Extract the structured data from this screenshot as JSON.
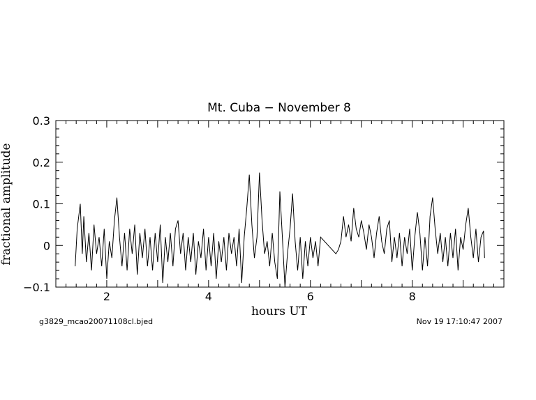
{
  "chart_data": {
    "type": "line",
    "title": "Mt. Cuba − November 8",
    "xlabel": "hours UT",
    "ylabel": "fractional amplitude",
    "xlim": [
      1.0,
      9.8
    ],
    "ylim": [
      -0.1,
      0.3
    ],
    "x_ticks": [
      2,
      4,
      6,
      8
    ],
    "x_tick_labels": [
      "2",
      "4",
      "6",
      "8"
    ],
    "y_ticks": [
      -0.1,
      0,
      0.1,
      0.2,
      0.3
    ],
    "y_tick_labels": [
      "−0.1",
      "0",
      "0.1",
      "0.2",
      "0.3"
    ],
    "grid": false,
    "series": [
      {
        "x": [
          1.38,
          1.42,
          1.48,
          1.52,
          1.55,
          1.6,
          1.65,
          1.7,
          1.75,
          1.8,
          1.85,
          1.9,
          1.95,
          2.0,
          2.05,
          2.1,
          2.15,
          2.2,
          2.25,
          2.3,
          2.35,
          2.4,
          2.45,
          2.5,
          2.55,
          2.6,
          2.65,
          2.7,
          2.75,
          2.8,
          2.85,
          2.9,
          2.95,
          3.0,
          3.05,
          3.1,
          3.15,
          3.2,
          3.25,
          3.3,
          3.35,
          3.4,
          3.45,
          3.5,
          3.55,
          3.6,
          3.65,
          3.7,
          3.75,
          3.8,
          3.85,
          3.9,
          3.95,
          4.0,
          4.05,
          4.1,
          4.15,
          4.2,
          4.25,
          4.3,
          4.35,
          4.4,
          4.45,
          4.5,
          4.55,
          4.6,
          4.65,
          4.7,
          4.75,
          4.8,
          4.85,
          4.9,
          4.95,
          5.0,
          5.05,
          5.1,
          5.15,
          5.2,
          5.25,
          5.3,
          5.35,
          5.4,
          5.45,
          5.5,
          5.55,
          5.6,
          5.65,
          5.7,
          5.75,
          5.8,
          5.85,
          5.9,
          5.95,
          6.0,
          6.05,
          6.1,
          6.15,
          6.2,
          6.5,
          6.55,
          6.6,
          6.65,
          6.7,
          6.75,
          6.8,
          6.85,
          6.9,
          6.95,
          7.0,
          7.05,
          7.1,
          7.15,
          7.2,
          7.25,
          7.3,
          7.35,
          7.4,
          7.45,
          7.5,
          7.55,
          7.6,
          7.65,
          7.7,
          7.75,
          7.8,
          7.85,
          7.9,
          7.95,
          8.0,
          8.05,
          8.1,
          8.15,
          8.2,
          8.25,
          8.3,
          8.35,
          8.4,
          8.45,
          8.5,
          8.55,
          8.6,
          8.65,
          8.7,
          8.75,
          8.8,
          8.85,
          8.9,
          8.95,
          9.0,
          9.05,
          9.1,
          9.15,
          9.2,
          9.25,
          9.3,
          9.35,
          9.4,
          9.42
        ],
        "y": [
          -0.05,
          0.04,
          0.1,
          -0.02,
          0.07,
          -0.04,
          0.03,
          -0.06,
          0.05,
          -0.02,
          0.02,
          -0.05,
          0.04,
          -0.08,
          0.01,
          -0.03,
          0.06,
          0.115,
          0.02,
          -0.05,
          0.03,
          -0.06,
          0.04,
          -0.02,
          0.05,
          -0.07,
          0.03,
          -0.03,
          0.04,
          -0.05,
          0.02,
          -0.06,
          0.03,
          -0.04,
          0.05,
          -0.09,
          0.02,
          -0.04,
          0.03,
          -0.05,
          0.04,
          0.06,
          -0.02,
          0.03,
          -0.06,
          0.02,
          -0.04,
          0.03,
          -0.07,
          0.01,
          -0.03,
          0.04,
          -0.06,
          0.02,
          -0.05,
          0.03,
          -0.08,
          0.01,
          -0.04,
          0.02,
          -0.06,
          0.03,
          -0.02,
          0.02,
          -0.05,
          0.04,
          -0.09,
          0.02,
          0.09,
          0.17,
          0.05,
          -0.03,
          0.02,
          0.175,
          0.06,
          -0.02,
          0.01,
          -0.05,
          0.03,
          -0.04,
          -0.08,
          0.13,
          0.02,
          -0.1,
          -0.02,
          0.04,
          0.125,
          0.01,
          -0.06,
          0.02,
          -0.08,
          0.01,
          -0.05,
          0.02,
          -0.03,
          0.01,
          -0.05,
          0.02,
          -0.02,
          -0.01,
          0.01,
          0.07,
          0.02,
          0.05,
          0.01,
          0.09,
          0.04,
          0.02,
          0.06,
          0.03,
          -0.01,
          0.05,
          0.02,
          -0.03,
          0.03,
          0.07,
          0.01,
          -0.02,
          0.04,
          0.06,
          -0.04,
          0.02,
          -0.03,
          0.03,
          -0.05,
          0.02,
          -0.02,
          0.04,
          -0.06,
          0.02,
          0.08,
          0.03,
          -0.06,
          0.02,
          -0.05,
          0.07,
          0.115,
          0.04,
          -0.02,
          0.03,
          -0.04,
          0.02,
          -0.05,
          0.03,
          -0.03,
          0.04,
          -0.06,
          0.02,
          -0.01,
          0.05,
          0.09,
          0.02,
          -0.03,
          0.04,
          -0.04,
          0.02,
          0.035,
          -0.03
        ]
      }
    ]
  },
  "footer": {
    "left": "g3829_mcao20071108cl.bjed",
    "right": "Nov 19 17:10:47 2007"
  }
}
